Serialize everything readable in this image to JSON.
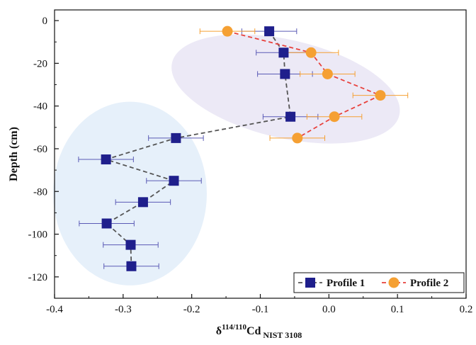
{
  "chart_data": {
    "type": "scatter",
    "xlabel_main": "δ",
    "xlabel_sup": "114/110",
    "xlabel_cd": "Cd",
    "xlabel_sub": " NIST 3108",
    "ylabel": "Depth (cm)",
    "xlim": [
      -0.4,
      0.2
    ],
    "ylim": [
      -130,
      5
    ],
    "xticks": [
      -0.4,
      -0.3,
      -0.2,
      -0.1,
      0.0,
      0.1,
      0.2
    ],
    "xtick_labels": [
      "-0.4",
      "-0.3",
      "-0.2",
      "-0.1",
      "0.0",
      "0.1",
      "0.2"
    ],
    "yticks": [
      0,
      -20,
      -40,
      -60,
      -80,
      -100,
      -120
    ],
    "ytick_labels": [
      "0",
      "-20",
      "-40",
      "-60",
      "-80",
      "-100",
      "-120"
    ],
    "legend_position": "bottom-right",
    "series": [
      {
        "name": "Profile 1",
        "marker": "square",
        "color": "#1f1f8c",
        "line_color": "#555555",
        "error_color": "#5a5ab5",
        "points": [
          {
            "x": -0.087,
            "y": -5,
            "xerr": 0.04
          },
          {
            "x": -0.066,
            "y": -15,
            "xerr": 0.04
          },
          {
            "x": -0.064,
            "y": -25,
            "xerr": 0.04
          },
          {
            "x": -0.056,
            "y": -45,
            "xerr": 0.04
          },
          {
            "x": -0.223,
            "y": -55,
            "xerr": 0.04
          },
          {
            "x": -0.325,
            "y": -65,
            "xerr": 0.04
          },
          {
            "x": -0.226,
            "y": -75,
            "xerr": 0.04
          },
          {
            "x": -0.271,
            "y": -85,
            "xerr": 0.04
          },
          {
            "x": -0.324,
            "y": -95,
            "xerr": 0.04
          },
          {
            "x": -0.289,
            "y": -105,
            "xerr": 0.04
          },
          {
            "x": -0.288,
            "y": -115,
            "xerr": 0.04
          }
        ]
      },
      {
        "name": "Profile 2",
        "marker": "circle",
        "color": "#f5a033",
        "line_color": "#e8413c",
        "error_color": "#f5a033",
        "points": [
          {
            "x": -0.148,
            "y": -5,
            "xerr": 0.04
          },
          {
            "x": -0.026,
            "y": -15,
            "xerr": 0.04
          },
          {
            "x": -0.002,
            "y": -25,
            "xerr": 0.04
          },
          {
            "x": 0.075,
            "y": -35,
            "xerr": 0.04
          },
          {
            "x": 0.008,
            "y": -45,
            "xerr": 0.04
          },
          {
            "x": -0.046,
            "y": -55,
            "xerr": 0.04
          }
        ]
      }
    ],
    "shaded_regions": [
      {
        "cx": -0.063,
        "cy": -32,
        "rx": 0.17,
        "ry": 23,
        "rotate": 13,
        "color": "#ece9f6"
      },
      {
        "cx": -0.29,
        "cy": -81,
        "rx": 0.112,
        "ry": 43,
        "rotate": 0,
        "color": "#e6f0fa"
      }
    ]
  }
}
